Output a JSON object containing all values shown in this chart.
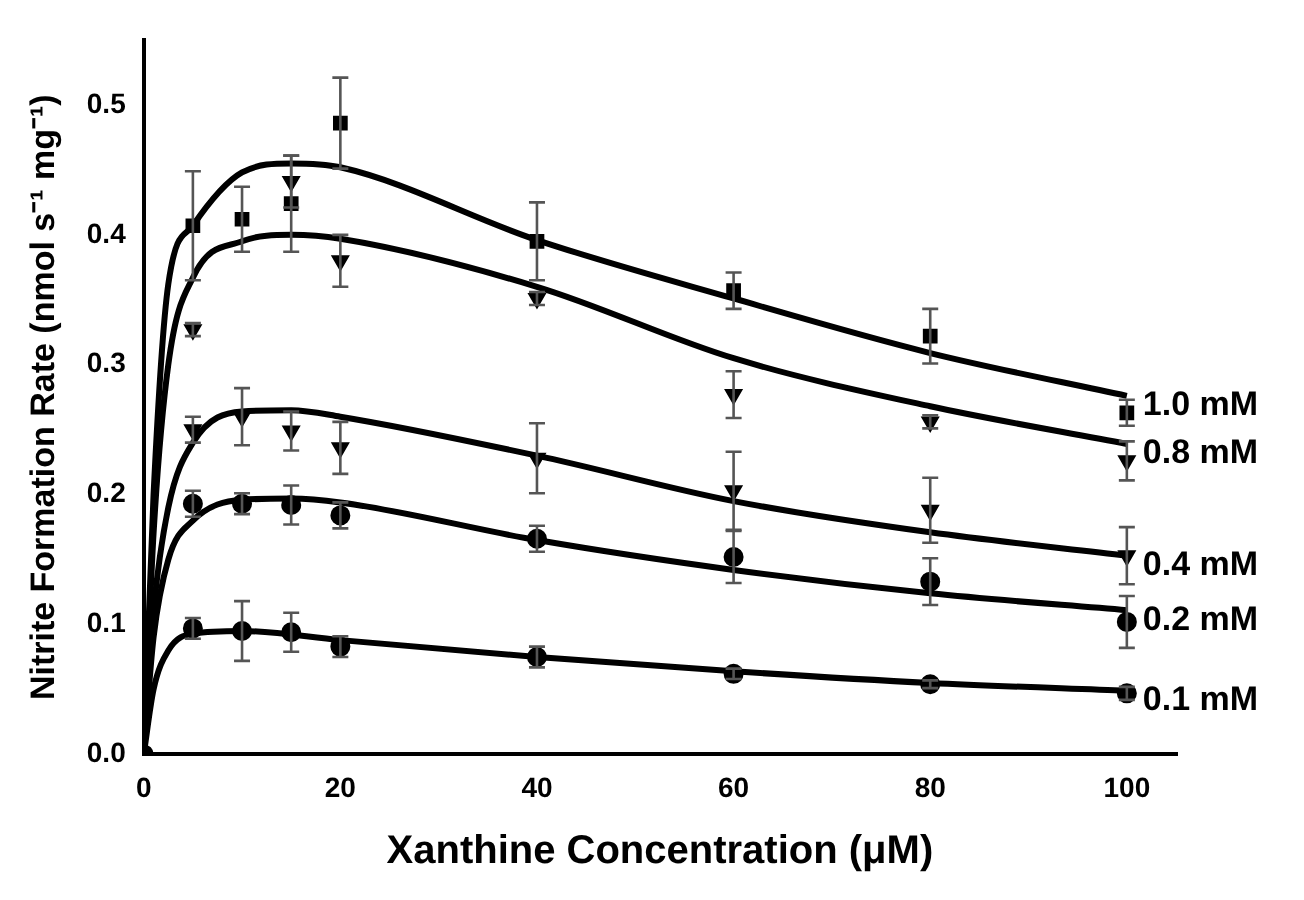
{
  "chart_data": {
    "type": "scatter",
    "xlabel": "Xanthine Concentration (μM)",
    "ylabel": "Nitrite Formation Rate (nmol s⁻¹ mg⁻¹)",
    "xlim": [
      0,
      105
    ],
    "xticks": [
      0,
      20,
      40,
      60,
      80,
      100
    ],
    "ylim": [
      0,
      0.55
    ],
    "yticks": [
      {
        "value": 0,
        "label": "0.0"
      },
      {
        "value": 0.1,
        "label": "0.1"
      },
      {
        "value": 0.2,
        "label": "0.2"
      },
      {
        "value": 0.3,
        "label": "0.3"
      },
      {
        "value": 0.4,
        "label": "0.4"
      },
      {
        "value": 0.5,
        "label": "0.5"
      }
    ],
    "grid": false,
    "legend": false,
    "series": [
      {
        "type": "scatter",
        "marker": "square",
        "color": "#000000",
        "x": [
          5,
          10,
          15,
          20,
          40,
          60,
          80,
          100
        ],
        "values": [
          0.407,
          0.412,
          0.424,
          0.486,
          0.395,
          0.357,
          0.322,
          0.263
        ],
        "errors": [
          0.042,
          0.025,
          0.037,
          0.035,
          0.03,
          0.014,
          0.021,
          0.01
        ]
      },
      {
        "type": "scatter",
        "marker": "triangle",
        "color": "#000000",
        "x": [
          5,
          10,
          15,
          20,
          40,
          60,
          80,
          100
        ],
        "values": [
          0.327,
          null,
          0.441,
          0.38,
          0.351,
          0.277,
          0.256,
          0.226
        ],
        "errors": [
          0.005,
          null,
          0.02,
          0.02,
          0.005,
          0.018,
          0.005,
          0.015
        ]
      },
      {
        "type": "scatter",
        "marker": "triangle",
        "color": "#000000",
        "x": [
          5,
          10,
          15,
          20,
          40,
          60,
          80,
          100
        ],
        "values": [
          0.25,
          0.26,
          0.249,
          0.236,
          0.228,
          0.203,
          0.188,
          0.153
        ],
        "errors": [
          0.01,
          0.022,
          0.015,
          0.02,
          0.027,
          0.03,
          0.025,
          0.022
        ]
      },
      {
        "type": "scatter",
        "marker": "circle",
        "color": "#000000",
        "x": [
          5,
          10,
          15,
          20,
          40,
          60,
          80,
          100
        ],
        "values": [
          0.193,
          0.193,
          0.192,
          0.184,
          0.166,
          0.152,
          0.133,
          0.102
        ],
        "errors": [
          0.01,
          0.008,
          0.015,
          0.01,
          0.01,
          0.02,
          0.018,
          0.02
        ]
      },
      {
        "type": "scatter",
        "marker": "circle",
        "color": "#000000",
        "x": [
          0,
          5,
          10,
          15,
          20,
          40,
          60,
          80,
          100
        ],
        "values": [
          0,
          0.097,
          0.095,
          0.094,
          0.083,
          0.075,
          0.062,
          0.054,
          0.047
        ],
        "errors": [
          null,
          0.008,
          0.023,
          0.015,
          0.008,
          0.008,
          0.004,
          0.003,
          0.005
        ]
      },
      {
        "type": "line",
        "name": "1.0 mM",
        "marker": "none",
        "color": "#000000",
        "x": [
          0,
          1,
          2.5,
          5,
          10,
          15,
          20,
          40,
          60,
          80,
          100
        ],
        "values": [
          0,
          0.2,
          0.362,
          0.407,
          0.448,
          0.455,
          0.452,
          0.396,
          0.351,
          0.309,
          0.276
        ]
      },
      {
        "type": "line",
        "name": "0.8 mM",
        "marker": "none",
        "color": "#000000",
        "x": [
          0,
          1,
          2.5,
          5,
          10,
          15,
          20,
          40,
          60,
          80,
          100
        ],
        "values": [
          0,
          0.17,
          0.3,
          0.367,
          0.395,
          0.4,
          0.397,
          0.36,
          0.305,
          0.268,
          0.239
        ]
      },
      {
        "type": "line",
        "name": "0.4 mM",
        "marker": "none",
        "color": "#000000",
        "x": [
          0,
          1,
          2.5,
          5,
          10,
          15,
          20,
          40,
          60,
          80,
          100
        ],
        "values": [
          0,
          0.11,
          0.19,
          0.24,
          0.264,
          0.265,
          0.26,
          0.23,
          0.195,
          0.171,
          0.153
        ]
      },
      {
        "type": "line",
        "name": "0.2 mM",
        "marker": "none",
        "color": "#000000",
        "x": [
          0,
          1,
          2.5,
          5,
          10,
          15,
          20,
          40,
          60,
          80,
          100
        ],
        "values": [
          0,
          0.09,
          0.15,
          0.18,
          0.196,
          0.197,
          0.194,
          0.165,
          0.142,
          0.124,
          0.111
        ]
      },
      {
        "type": "line",
        "name": "0.1 mM",
        "marker": "none",
        "color": "#000000",
        "x": [
          0,
          1,
          2.5,
          5,
          10,
          20,
          40,
          60,
          80,
          100
        ],
        "values": [
          0,
          0.05,
          0.08,
          0.093,
          0.095,
          0.088,
          0.075,
          0.064,
          0.055,
          0.049
        ]
      }
    ]
  }
}
